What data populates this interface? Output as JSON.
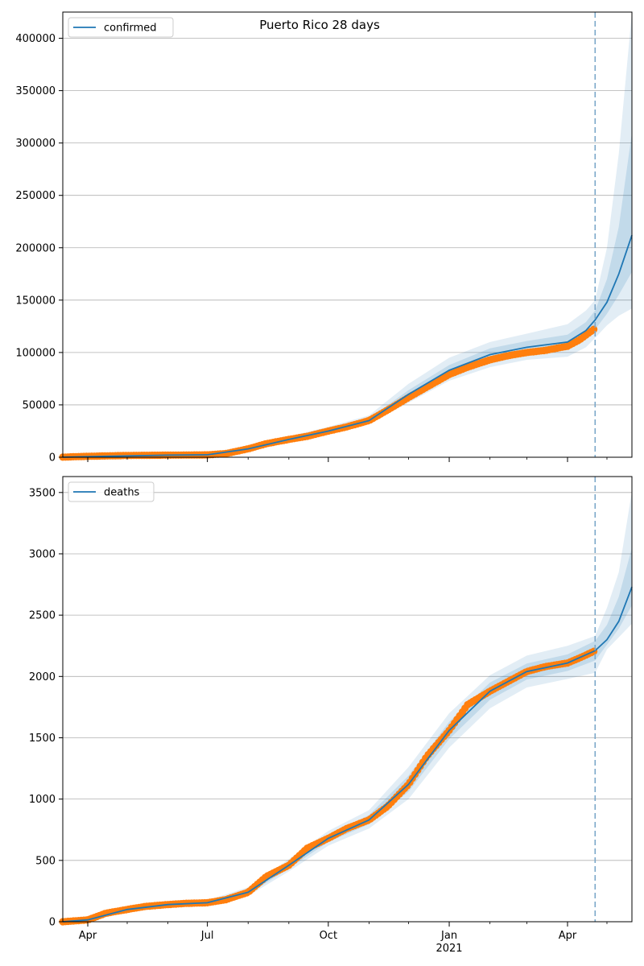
{
  "chart_data": {
    "type": "line",
    "title": "Puerto Rico 28 days",
    "x_axis": {
      "range": [
        "2020-03-13",
        "2021-05-20"
      ],
      "major_ticks": [
        {
          "date": "2020-04-01",
          "label": "Apr"
        },
        {
          "date": "2020-07-01",
          "label": "Jul"
        },
        {
          "date": "2020-10-01",
          "label": "Oct"
        },
        {
          "date": "2021-01-01",
          "label": "Jan"
        },
        {
          "date": "2021-04-01",
          "label": "Apr"
        }
      ],
      "year_label": {
        "date": "2021-01-01",
        "label": "2021"
      },
      "minor_tick_dates": [
        "2020-05-01",
        "2020-06-01",
        "2020-08-01",
        "2020-09-01",
        "2020-11-01",
        "2020-12-01",
        "2021-02-01",
        "2021-03-01",
        "2021-05-01"
      ]
    },
    "forecast_start": "2021-04-22",
    "colors": {
      "model": "#1f77b4",
      "observed": "#ff7f0e",
      "band": "#1f77b4",
      "vline": "#7ba7c9",
      "grid": "#b0b0b0"
    },
    "panels": [
      {
        "legend": "confirmed",
        "legend_position": "upper-left",
        "ylim": [
          0,
          425000
        ],
        "y_ticks": [
          0,
          50000,
          100000,
          150000,
          200000,
          250000,
          300000,
          350000,
          400000
        ],
        "grid": true,
        "observed": {
          "x": [
            "2020-03-13",
            "2020-04-01",
            "2020-05-01",
            "2020-06-01",
            "2020-07-01",
            "2020-07-15",
            "2020-08-01",
            "2020-08-15",
            "2020-09-01",
            "2020-09-15",
            "2020-10-01",
            "2020-10-15",
            "2020-11-01",
            "2020-11-15",
            "2020-12-01",
            "2020-12-15",
            "2021-01-01",
            "2021-01-15",
            "2021-02-01",
            "2021-02-15",
            "2021-03-01",
            "2021-03-15",
            "2021-04-01",
            "2021-04-10",
            "2021-04-22"
          ],
          "y": [
            100,
            900,
            1700,
            2000,
            2300,
            3500,
            8000,
            13000,
            17000,
            20000,
            25000,
            29000,
            35000,
            45000,
            57000,
            67000,
            79000,
            86000,
            93000,
            97000,
            100000,
            102000,
            106000,
            112000,
            123000
          ]
        },
        "model": {
          "x": [
            "2020-03-13",
            "2020-06-01",
            "2020-07-01",
            "2020-08-01",
            "2020-09-01",
            "2020-10-01",
            "2020-11-01",
            "2020-12-01",
            "2021-01-01",
            "2021-02-01",
            "2021-03-01",
            "2021-04-01",
            "2021-04-15",
            "2021-04-22",
            "2021-05-01",
            "2021-05-10",
            "2021-05-20"
          ],
          "y": [
            100,
            2000,
            2300,
            8000,
            17000,
            25000,
            35000,
            60000,
            83000,
            98000,
            105000,
            110000,
            121000,
            131000,
            148000,
            175000,
            212000
          ]
        },
        "bands": [
          {
            "lower": [
              0,
              1000,
              1500,
              6000,
              14000,
              22000,
              32000,
              52000,
              73000,
              86000,
              93000,
              96000,
              105000,
              114000,
              126000,
              135000,
              142000
            ],
            "upper": [
              300,
              3000,
              3500,
              10000,
              20000,
              29000,
              40000,
              70000,
              95000,
              110000,
              118000,
              127000,
              140000,
              150000,
              200000,
              290000,
              425000
            ]
          },
          {
            "lower": [
              50,
              1500,
              1900,
              7000,
              15500,
              23500,
              33500,
              56000,
              78000,
              92000,
              99000,
              103000,
              113000,
              122000,
              137000,
              155000,
              177000
            ],
            "upper": [
              200,
              2500,
              2800,
              9000,
              18500,
              27000,
              37000,
              64000,
              88000,
              104000,
              111000,
              117000,
              129000,
              140000,
              170000,
              220000,
              310000
            ]
          }
        ]
      },
      {
        "legend": "deaths",
        "legend_position": "upper-left",
        "ylim": [
          0,
          3630
        ],
        "y_ticks": [
          0,
          500,
          1000,
          1500,
          2000,
          2500,
          3000,
          3500
        ],
        "grid": true,
        "observed": {
          "x": [
            "2020-03-13",
            "2020-04-01",
            "2020-04-15",
            "2020-05-01",
            "2020-05-15",
            "2020-06-01",
            "2020-06-15",
            "2020-07-01",
            "2020-07-15",
            "2020-08-01",
            "2020-08-15",
            "2020-09-01",
            "2020-09-15",
            "2020-10-01",
            "2020-10-15",
            "2020-11-01",
            "2020-11-15",
            "2020-12-01",
            "2020-12-15",
            "2021-01-01",
            "2021-01-15",
            "2021-02-01",
            "2021-02-15",
            "2021-03-01",
            "2021-03-15",
            "2021-04-01",
            "2021-04-10",
            "2021-04-22"
          ],
          "y": [
            0,
            15,
            70,
            100,
            125,
            140,
            150,
            155,
            180,
            240,
            370,
            460,
            600,
            680,
            760,
            830,
            940,
            1120,
            1350,
            1560,
            1770,
            1880,
            1960,
            2040,
            2080,
            2110,
            2150,
            2210
          ]
        },
        "model": {
          "x": [
            "2020-03-13",
            "2020-04-01",
            "2020-05-01",
            "2020-06-01",
            "2020-07-01",
            "2020-08-01",
            "2020-09-01",
            "2020-10-01",
            "2020-11-01",
            "2020-12-01",
            "2021-01-01",
            "2021-02-01",
            "2021-03-01",
            "2021-04-01",
            "2021-04-22",
            "2021-05-01",
            "2021-05-10",
            "2021-05-20"
          ],
          "y": [
            0,
            15,
            100,
            140,
            155,
            240,
            460,
            680,
            830,
            1120,
            1560,
            1880,
            2040,
            2110,
            2210,
            2300,
            2450,
            2730
          ]
        },
        "bands": [
          {
            "lower": [
              0,
              5,
              85,
              125,
              140,
              210,
              410,
              620,
              760,
              1000,
              1420,
              1740,
              1910,
              1980,
              2030,
              2220,
              2320,
              2430
            ],
            "upper": [
              20,
              30,
              120,
              160,
              175,
              280,
              510,
              740,
              910,
              1260,
              1700,
              2010,
              2170,
              2250,
              2330,
              2560,
              2850,
              3510
            ]
          },
          {
            "lower": [
              0,
              10,
              92,
              132,
              147,
              225,
              435,
              650,
              795,
              1060,
              1490,
              1810,
              1975,
              2045,
              2130,
              2260,
              2390,
              2580
            ],
            "upper": [
              10,
              22,
              110,
              150,
              165,
              258,
              485,
              710,
              870,
              1190,
              1630,
              1950,
              2105,
              2180,
              2290,
              2420,
              2650,
              3050
            ]
          }
        ]
      }
    ]
  }
}
